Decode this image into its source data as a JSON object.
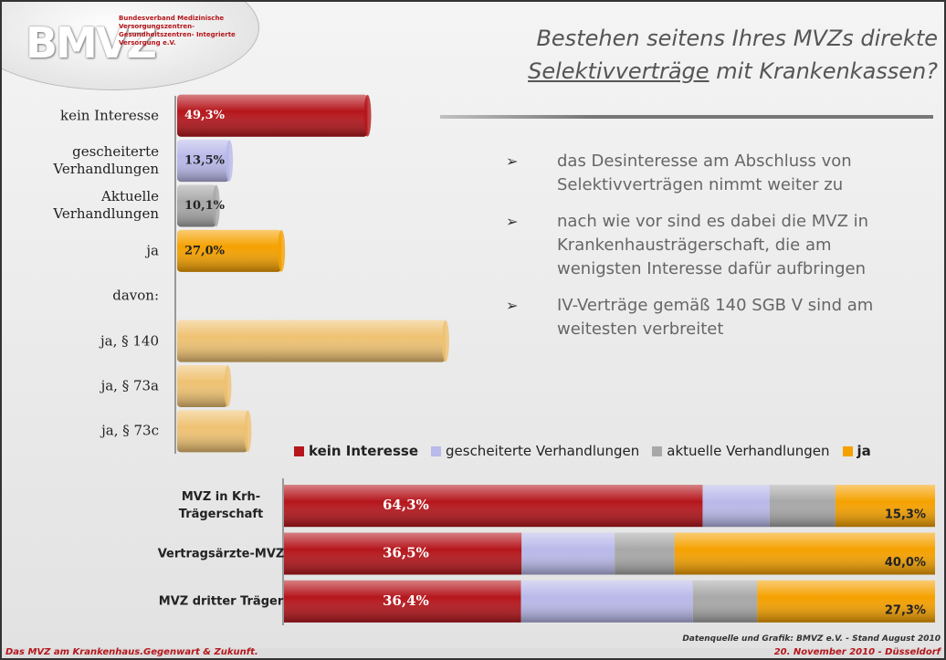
{
  "header": {
    "logo": "BMVZ",
    "org": "Bundesverband Medizinische Versorgungszentren- Gesundheitszentren- Integrierte Versorgung e.V.",
    "title_parts": [
      "Bestehen seitens Ihres MVZs direkte",
      "Selektivverträge",
      "mit Krankenkassen?"
    ]
  },
  "bullets": [
    "das Desinteresse am Abschluss von Selektivverträgen nimmt weiter zu",
    "nach wie vor sind es dabei die MVZ in Krankenhausträgerschaft, die am wenigsten Interesse dafür aufbringen",
    "IV-Verträge gemäß    140 SGB V sind am weitesten verbreitet"
  ],
  "footer": {
    "left": "Das MVZ am Krankenhaus.Gegenwart & Zukunft.",
    "right": "20. November 2010 - Düsseldorf",
    "source": "Datenquelle und Grafik: BMVZ e.V. - Stand August 2010"
  },
  "chart_data": [
    {
      "type": "hbar",
      "categories": [
        "kein Interesse",
        "gescheiterte Verhandlungen",
        "Aktuelle Verhandlungen",
        "ja",
        "davon:",
        "ja, § 140",
        "ja, § 73a",
        "ja, § 73c"
      ],
      "values": [
        49.3,
        13.5,
        10.1,
        27.0,
        null,
        69.5,
        13.1,
        18.3
      ],
      "value_labels": [
        "49,3%",
        "13,5%",
        "10,1%",
        "27,0%",
        null,
        null,
        null,
        null
      ],
      "colors": [
        "#b5161c",
        "#b9b9ea",
        "#a8a8a8",
        "#f5a100",
        null,
        "#efc272",
        "#efc272",
        "#efc272"
      ],
      "xlim": [
        0,
        70
      ]
    },
    {
      "type": "stacked_hbar",
      "categories": [
        "MVZ in Krh-Trägerschaft",
        "Vertragsärzte-MVZ",
        "MVZ dritter Träger"
      ],
      "series": [
        {
          "name": "kein Interesse",
          "color": "#b5161c",
          "values": [
            64.3,
            36.5,
            36.4
          ],
          "value_labels": [
            "64,3%",
            "36,5%",
            "36,4%"
          ]
        },
        {
          "name": "gescheiterte Verhandlungen",
          "color": "#b9b9ea",
          "values": [
            10.3,
            14.3,
            26.4
          ]
        },
        {
          "name": "aktuelle Verhandlungen",
          "color": "#a8a8a8",
          "values": [
            10.1,
            9.2,
            9.9
          ]
        },
        {
          "name": "ja",
          "color": "#f5a100",
          "values": [
            15.3,
            40.0,
            27.3
          ],
          "value_labels": [
            "15,3%",
            "40,0%",
            "27,3%"
          ]
        }
      ],
      "xlim": [
        0,
        100
      ],
      "legend": "top"
    }
  ]
}
